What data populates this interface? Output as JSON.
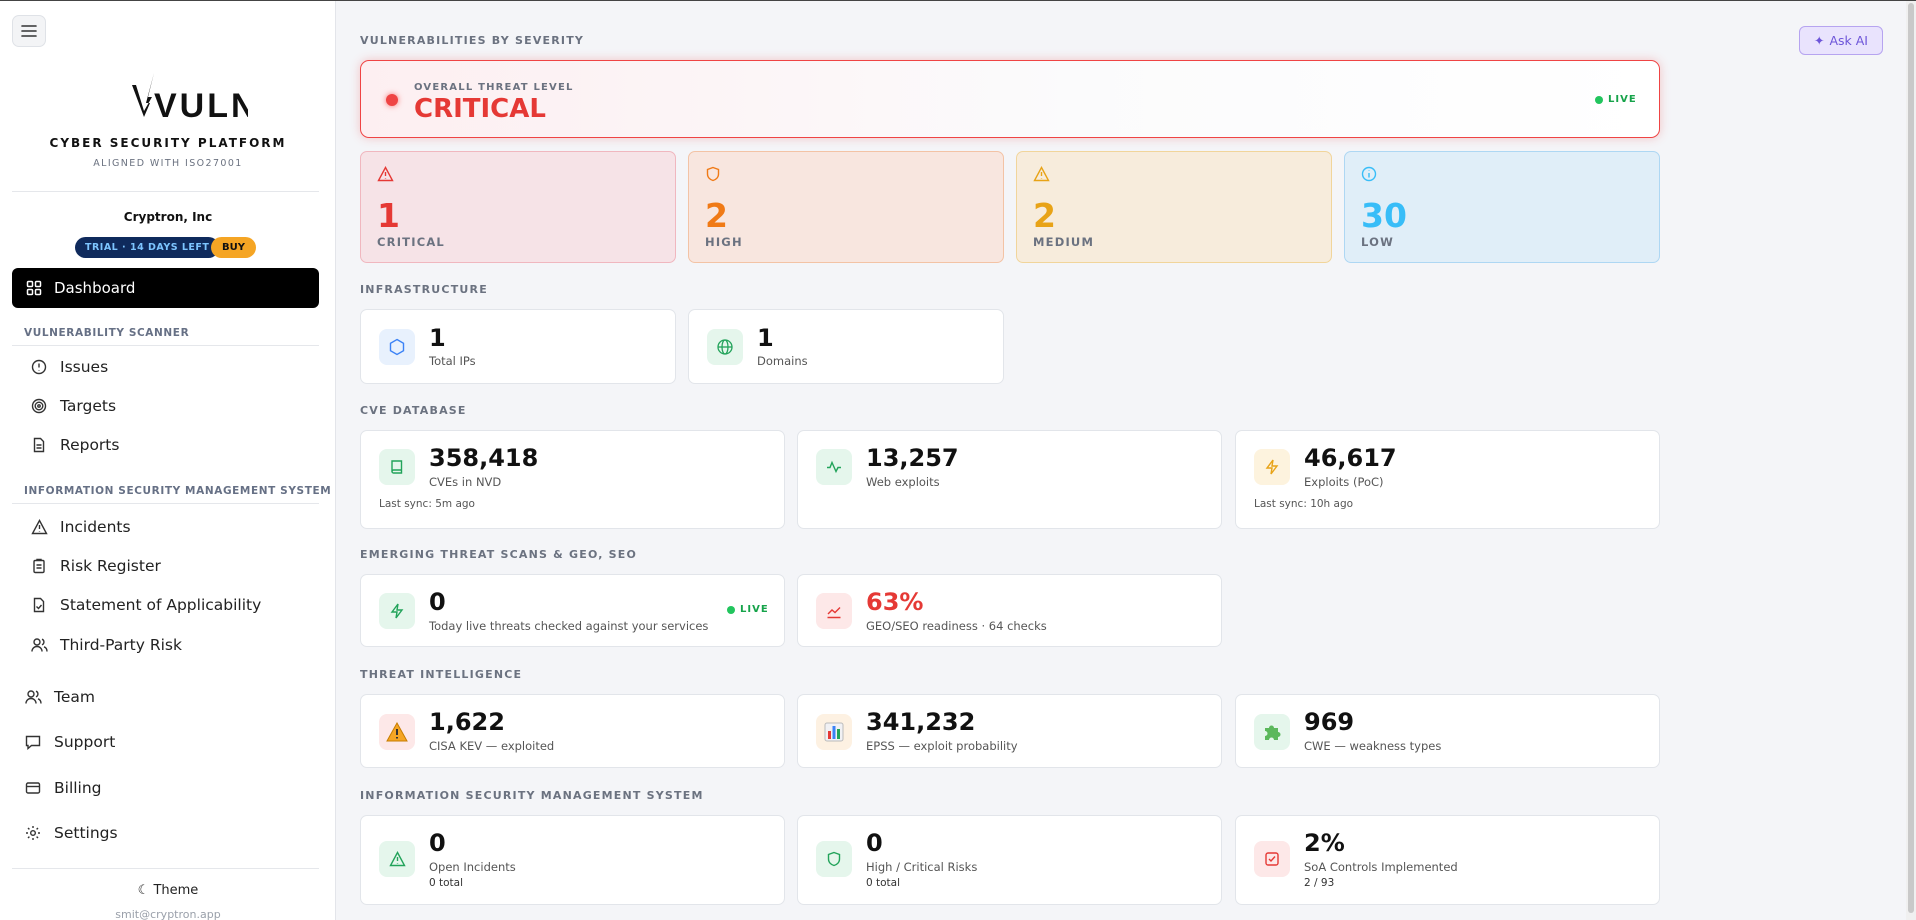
{
  "sidebar": {
    "logo_text": "VULNY",
    "tagline": "CYBER SECURITY PLATFORM",
    "aligned": "ALIGNED WITH ISO27001",
    "org": "Cryptron, Inc",
    "trial": "TRIAL · 14 DAYS LEFT",
    "buy": "BUY",
    "active": "Dashboard",
    "section1": "VULNERABILITY SCANNER",
    "section1_items": [
      "Issues",
      "Targets",
      "Reports"
    ],
    "section2": "INFORMATION SECURITY MANAGEMENT SYSTEM",
    "section2_items": [
      "Incidents",
      "Risk Register",
      "Statement of Applicability",
      "Third-Party Risk"
    ],
    "bottom_items": [
      "Team",
      "Support",
      "Billing",
      "Settings"
    ],
    "theme": "☾ Theme",
    "email": "smit@cryptron.app"
  },
  "header": {
    "ask_ai": "Ask AI",
    "ask_ai_icon": "sparkle-icon"
  },
  "severity": {
    "title": "VULNERABILITIES BY SEVERITY",
    "overall_label": "OVERALL THREAT LEVEL",
    "overall_value": "CRITICAL",
    "live": "LIVE",
    "cards": [
      {
        "value": "1",
        "label": "CRITICAL",
        "icon": "alert-triangle-icon",
        "color": "#e53935"
      },
      {
        "value": "2",
        "label": "HIGH",
        "icon": "shield-icon",
        "color": "#f07a16"
      },
      {
        "value": "2",
        "label": "MEDIUM",
        "icon": "warning-icon",
        "color": "#e8a317"
      },
      {
        "value": "30",
        "label": "LOW",
        "icon": "info-icon",
        "color": "#38bdf8"
      }
    ]
  },
  "infrastructure": {
    "title": "INFRASTRUCTURE",
    "cards": [
      {
        "value": "1",
        "label": "Total IPs",
        "icon": "hexagon-icon"
      },
      {
        "value": "1",
        "label": "Domains",
        "icon": "globe-icon"
      }
    ]
  },
  "cve": {
    "title": "CVE DATABASE",
    "cards": [
      {
        "value": "358,418",
        "label": "CVEs in NVD",
        "extra": "Last sync: 5m ago",
        "icon": "book-icon"
      },
      {
        "value": "13,257",
        "label": "Web exploits",
        "icon": "activity-icon"
      },
      {
        "value": "46,617",
        "label": "Exploits (PoC)",
        "extra": "Last sync: 10h ago",
        "icon": "bolt-icon"
      }
    ]
  },
  "emerging": {
    "title": "EMERGING THREAT SCANS & GEO, SEO",
    "cards": [
      {
        "value": "0",
        "label": "Today live threats checked against your services",
        "badge": "LIVE",
        "icon": "bolt-icon"
      },
      {
        "value": "63%",
        "label": "GEO/SEO readiness · 64 checks",
        "icon": "trend-icon",
        "color": "#e53935"
      }
    ]
  },
  "intel": {
    "title": "THREAT INTELLIGENCE",
    "cards": [
      {
        "value": "1,622",
        "label": "CISA KEV — exploited",
        "icon": "warning-emoji-icon"
      },
      {
        "value": "341,232",
        "label": "EPSS — exploit probability",
        "icon": "bar-chart-emoji-icon"
      },
      {
        "value": "969",
        "label": "CWE — weakness types",
        "icon": "puzzle-emoji-icon"
      }
    ]
  },
  "isms": {
    "title": "INFORMATION SECURITY MANAGEMENT SYSTEM",
    "cards": [
      {
        "value": "0",
        "label": "Open Incidents",
        "extra": "0 total",
        "icon": "alert-triangle-icon"
      },
      {
        "value": "0",
        "label": "High / Critical Risks",
        "extra": "0 total",
        "icon": "shield-icon"
      },
      {
        "value": "2%",
        "label": "SoA Controls Implemented",
        "extra": "2 / 93",
        "icon": "checkbox-icon"
      }
    ]
  }
}
